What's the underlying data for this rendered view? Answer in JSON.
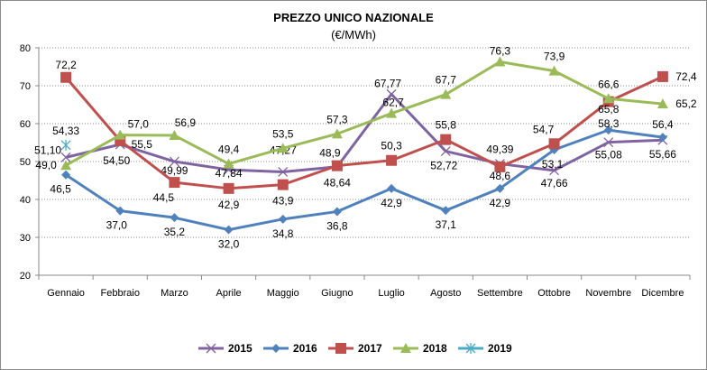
{
  "chart_data": {
    "type": "line",
    "title": "PREZZO UNICO NAZIONALE",
    "subtitle": "(€/MWh)",
    "xlabel": "",
    "ylabel": "",
    "ylim": [
      20,
      80
    ],
    "yticks": [
      20,
      30,
      40,
      50,
      60,
      70,
      80
    ],
    "grid": true,
    "legend": "bottom",
    "categories": [
      "Gennaio",
      "Febbraio",
      "Marzo",
      "Aprile",
      "Maggio",
      "Giugno",
      "Luglio",
      "Agosto",
      "Settembre",
      "Ottobre",
      "Novembre",
      "Dicembre"
    ],
    "series": [
      {
        "name": "2015",
        "color": "#8064a2",
        "marker": "x",
        "values": [
          51.1,
          54.5,
          49.99,
          47.84,
          47.27,
          48.64,
          67.77,
          52.72,
          49.39,
          47.66,
          55.08,
          55.66
        ],
        "labels": [
          "51,10",
          "54,50",
          "49,99",
          "47,84",
          "47,27",
          "48,64",
          "67,77",
          "52,72",
          "49,39",
          "47,66",
          "55,08",
          "55,66"
        ]
      },
      {
        "name": "2016",
        "color": "#4f81bd",
        "marker": "diamond",
        "values": [
          46.5,
          37.0,
          35.2,
          32.0,
          34.8,
          36.8,
          42.9,
          37.1,
          42.9,
          53.1,
          58.3,
          56.4
        ],
        "labels": [
          "46,5",
          "37,0",
          "35,2",
          "32,0",
          "34,8",
          "36,8",
          "42,9",
          "37,1",
          "42,9",
          "53,1",
          "58,3",
          "56,4"
        ]
      },
      {
        "name": "2017",
        "color": "#c0504d",
        "marker": "square",
        "values": [
          72.2,
          55.5,
          44.5,
          42.9,
          43.9,
          48.9,
          50.3,
          55.8,
          48.6,
          54.7,
          65.8,
          72.4
        ],
        "labels": [
          "72,2",
          "55,5",
          "44,5",
          "42,9",
          "43,9",
          "48,9",
          "50,3",
          "55,8",
          "48,6",
          "54,7",
          "65,8",
          "72,4"
        ]
      },
      {
        "name": "2018",
        "color": "#9bbb59",
        "marker": "triangle",
        "values": [
          49.0,
          57.0,
          56.9,
          49.4,
          53.5,
          57.3,
          62.7,
          67.7,
          76.3,
          73.9,
          66.6,
          65.2
        ],
        "labels": [
          "49,0",
          "57,0",
          "56,9",
          "49,4",
          "53,5",
          "57,3",
          "62,7",
          "67,7",
          "76,3",
          "73,9",
          "66,6",
          "65,2"
        ]
      },
      {
        "name": "2019",
        "color": "#4bacc6",
        "marker": "star",
        "values": [
          54.33,
          null,
          null,
          null,
          null,
          null,
          null,
          null,
          null,
          null,
          null,
          null
        ],
        "labels": [
          "54,33"
        ]
      }
    ]
  }
}
